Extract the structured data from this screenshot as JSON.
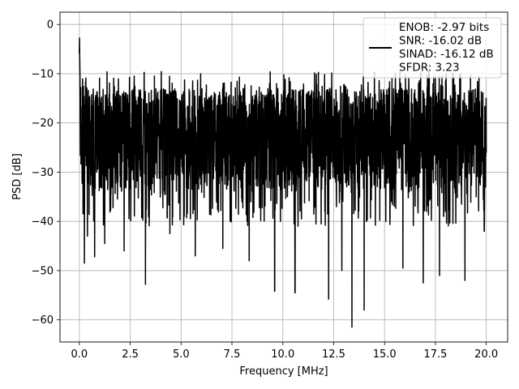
{
  "chart_data": {
    "type": "line",
    "title": "",
    "xlabel": "Frequency [MHz]",
    "ylabel": "PSD [dB]",
    "xlim": [
      -0.95,
      21.05
    ],
    "ylim": [
      -64.5,
      2.5
    ],
    "xticks": [
      0.0,
      2.5,
      5.0,
      7.5,
      10.0,
      12.5,
      15.0,
      17.5,
      20.0
    ],
    "xtick_labels": [
      "0.0",
      "2.5",
      "5.0",
      "7.5",
      "10.0",
      "12.5",
      "15.0",
      "17.5",
      "20.0"
    ],
    "yticks": [
      0,
      -10,
      -20,
      -30,
      -40,
      -50,
      -60
    ],
    "ytick_labels": [
      "0",
      "−10",
      "−20",
      "−30",
      "−40",
      "−50",
      "−60"
    ],
    "grid": true,
    "legend_position": "top-right",
    "line_color": "#000000",
    "series": [
      {
        "name": "ENOB: -2.97 bits\nSNR: -16.02 dB\nSINAD: -16.12 dB\nSFDR: 3.23",
        "x_range": [
          0.0,
          20.0
        ],
        "num_points": 2500,
        "peak_x": 0.0,
        "peak_y": 0.0,
        "noise_mean_db": -22.5,
        "noise_upper_db": -13.0,
        "noise_lower_db": -34.0,
        "notable_dips": [
          {
            "x": 0.25,
            "y": -48.5
          },
          {
            "x": 0.4,
            "y": -43.0
          },
          {
            "x": 0.75,
            "y": -47.2
          },
          {
            "x": 1.25,
            "y": -44.5
          },
          {
            "x": 2.2,
            "y": -46.0
          },
          {
            "x": 3.25,
            "y": -52.8
          },
          {
            "x": 4.45,
            "y": -42.5
          },
          {
            "x": 5.7,
            "y": -47.0
          },
          {
            "x": 7.05,
            "y": -45.5
          },
          {
            "x": 8.35,
            "y": -48.0
          },
          {
            "x": 9.6,
            "y": -54.2
          },
          {
            "x": 10.6,
            "y": -54.5
          },
          {
            "x": 12.25,
            "y": -55.8
          },
          {
            "x": 12.9,
            "y": -50.0
          },
          {
            "x": 13.4,
            "y": -61.5
          },
          {
            "x": 14.0,
            "y": -58.0
          },
          {
            "x": 15.9,
            "y": -49.5
          },
          {
            "x": 16.9,
            "y": -52.5
          },
          {
            "x": 17.7,
            "y": -51.0
          },
          {
            "x": 18.95,
            "y": -52.0
          },
          {
            "x": 19.9,
            "y": -42.0
          }
        ]
      }
    ]
  }
}
